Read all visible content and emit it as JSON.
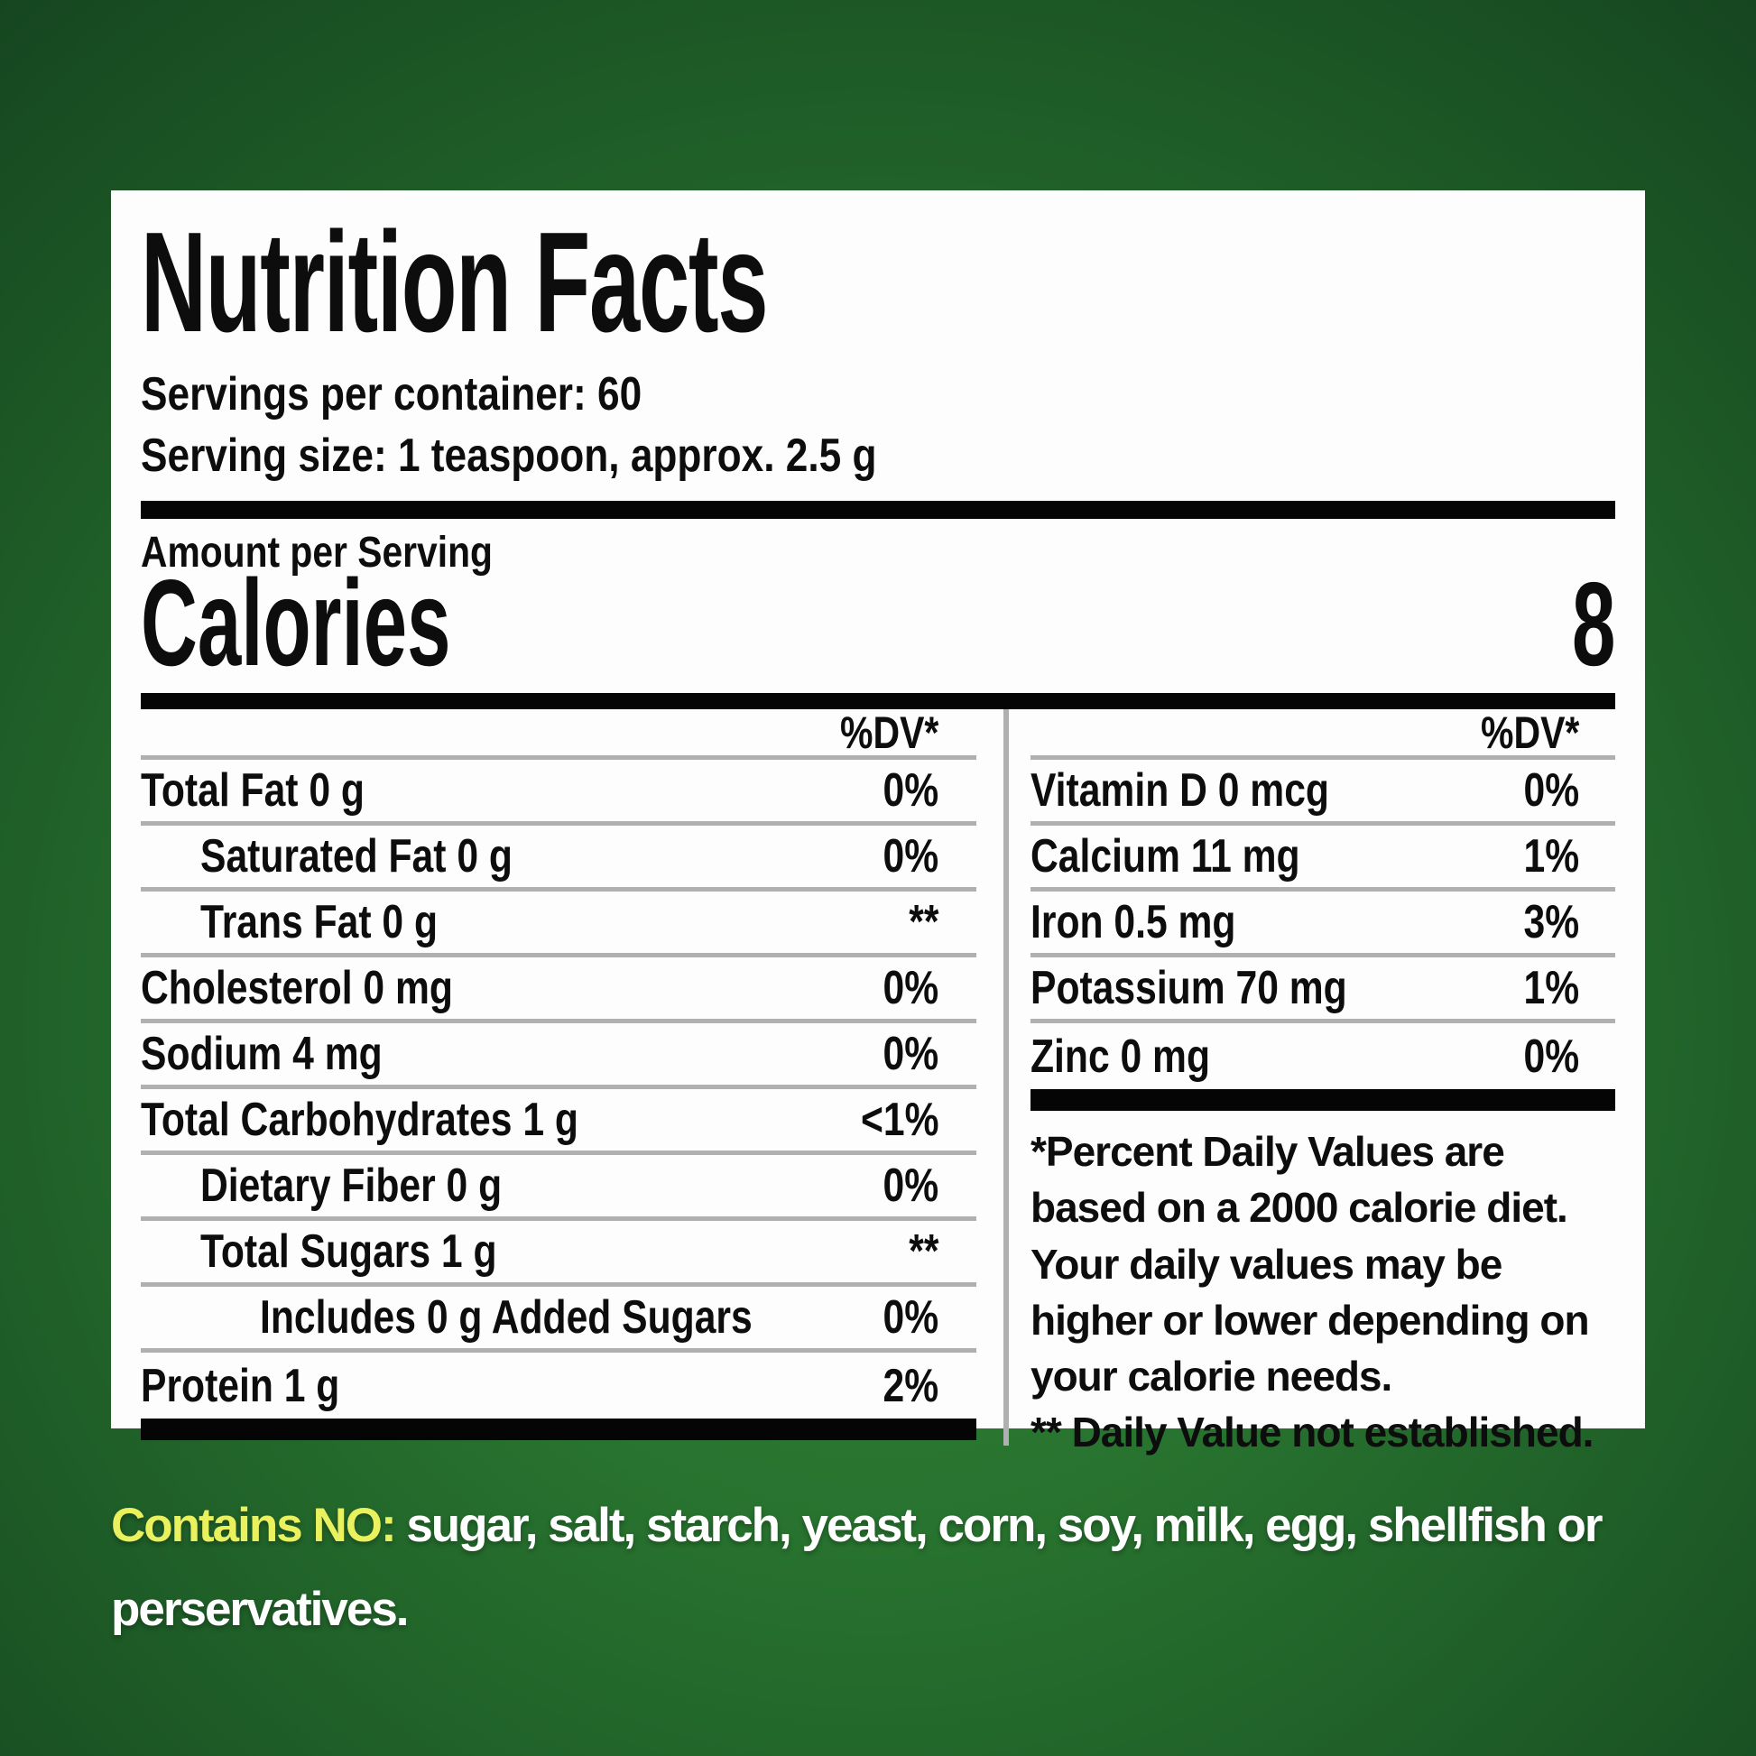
{
  "colors": {
    "background_center_green": "#31843a",
    "background_edge_green": "#164620",
    "panel_background": "#fdfdfd",
    "rule_gray": "#b0b0b0",
    "text_black": "#0d0d0d",
    "highlight_yellow": "#e9f15e",
    "bottom_text_white": "#ffffff"
  },
  "panel": {
    "title": "Nutrition Facts",
    "servings_per_container": "Servings per container: 60",
    "serving_size": "Serving size: 1 teaspoon, approx. 2.5 g",
    "amount_per_serving": "Amount per Serving",
    "calories_label": "Calories",
    "calories_value": "8",
    "dv_header_left": "%DV*",
    "dv_header_right": "%DV*",
    "left_rows": [
      {
        "label": "Total Fat 0 g",
        "dv": "0%"
      },
      {
        "label": "Saturated Fat 0 g",
        "dv": "0%"
      },
      {
        "label": "Trans Fat 0 g",
        "dv": "**"
      },
      {
        "label": "Cholesterol 0 mg",
        "dv": "0%"
      },
      {
        "label": "Sodium 4 mg",
        "dv": "0%"
      },
      {
        "label": "Total Carbohydrates 1 g",
        "dv": "<1%"
      },
      {
        "label": "Dietary Fiber 0 g",
        "dv": "0%"
      },
      {
        "label": "Total Sugars 1 g",
        "dv": "**"
      },
      {
        "label": "Includes 0 g Added Sugars",
        "dv": "0%"
      },
      {
        "label": "Protein 1 g",
        "dv": "2%"
      }
    ],
    "right_rows": [
      {
        "label": "Vitamin D 0 mcg",
        "dv": "0%"
      },
      {
        "label": "Calcium 11 mg",
        "dv": "1%"
      },
      {
        "label": "Iron 0.5 mg",
        "dv": "3%"
      },
      {
        "label": "Potassium 70 mg",
        "dv": "1%"
      },
      {
        "label": "Zinc 0 mg",
        "dv": "0%"
      }
    ],
    "footnote_percent": "*Percent Daily Values are based on a 2000 calorie diet. Your daily values may be higher or lower depending on your calorie needs.",
    "footnote_not_established": "** Daily Value not established."
  },
  "bottom_note": {
    "highlight": "Contains NO:",
    "text": " sugar, salt, starch, yeast, corn, soy, milk, egg, shellfish or perservatives."
  }
}
